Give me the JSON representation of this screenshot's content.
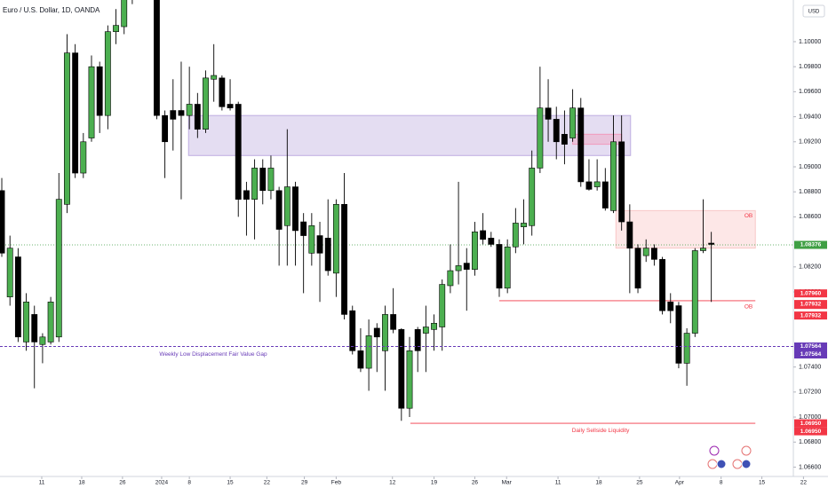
{
  "chart_data": {
    "type": "candlestick",
    "title": "Euro / U.S. Dollar, 1D, OANDA",
    "currency": "USD",
    "up_color": "#4caf50",
    "down_color": "#000000",
    "x": [
      0,
      1,
      2,
      3,
      4,
      5,
      6,
      7,
      8,
      9,
      10,
      11,
      12,
      13,
      14,
      15,
      16,
      17,
      18,
      19,
      20,
      21,
      22,
      23,
      24,
      25,
      26,
      27,
      28,
      29,
      30,
      31,
      32,
      33,
      34,
      35,
      36,
      37,
      38,
      39,
      40,
      41,
      42,
      43,
      44,
      45,
      46,
      47,
      48,
      49,
      50,
      51,
      52,
      53,
      54,
      55,
      56,
      57,
      58,
      59,
      60,
      61,
      62,
      63,
      64,
      65,
      66,
      67,
      68,
      69,
      70,
      71,
      72,
      73,
      74,
      75,
      76,
      77,
      78,
      79,
      80,
      81,
      82,
      83,
      84,
      85,
      86,
      87
    ],
    "open": [
      1.0881,
      1.0796,
      1.0828,
      1.076,
      1.0782,
      1.0758,
      1.076,
      1.0764,
      1.087,
      1.0991,
      1.0895,
      1.0923,
      1.098,
      1.0941,
      1.1008,
      1.1012,
      1.104,
      1.105,
      1.1045,
      1.106,
      1.0941,
      1.0945,
      1.0945,
      1.0941,
      1.095,
      1.093,
      1.097,
      1.0971,
      1.095,
      1.095,
      1.0881,
      1.0874,
      1.0899,
      1.0881,
      1.0881,
      1.0853,
      1.0884,
      1.0856,
      1.0831,
      1.0845,
      1.0843,
      1.0815,
      1.087,
      1.0785,
      1.0753,
      1.0739,
      1.0771,
      1.0753,
      1.0782,
      1.077,
      1.0707,
      1.077,
      1.0767,
      1.077,
      1.0772,
      1.0805,
      1.0817,
      1.0823,
      1.0818,
      1.0849,
      1.0843,
      1.0838,
      1.0803,
      1.0836,
      1.0852,
      1.0853,
      1.0899,
      1.0947,
      1.0938,
      1.0926,
      1.0923,
      1.0947,
      1.0888,
      1.0884,
      1.0888,
      1.0865,
      1.092,
      1.0856,
      1.0835,
      1.0829,
      1.0835,
      1.0826,
      1.0792,
      1.0789,
      1.0743,
      1.0767,
      1.0833,
      1.0839
    ],
    "high": [
      1.0891,
      1.0845,
      1.0835,
      1.0799,
      1.0789,
      1.0767,
      1.0796,
      1.0895,
      1.1006,
      1.0998,
      1.0927,
      1.0989,
      1.0984,
      1.1013,
      1.1026,
      1.104,
      1.106,
      1.1075,
      1.107,
      1.108,
      1.0945,
      1.097,
      1.0984,
      1.098,
      1.0959,
      1.0977,
      1.0998,
      1.0973,
      1.097,
      1.0952,
      1.0888,
      1.0906,
      1.0906,
      1.0909,
      1.0884,
      1.093,
      1.0888,
      1.0863,
      1.0863,
      1.0856,
      1.0874,
      1.0874,
      1.0895,
      1.0789,
      1.0771,
      1.0778,
      1.0775,
      1.0789,
      1.0803,
      1.0771,
      1.0764,
      1.0772,
      1.0789,
      1.0782,
      1.081,
      1.0838,
      1.0888,
      1.0835,
      1.0856,
      1.0863,
      1.0848,
      1.0842,
      1.0842,
      1.0867,
      1.0874,
      1.0913,
      1.098,
      1.097,
      1.0948,
      1.0945,
      1.0962,
      1.0955,
      1.0906,
      1.0906,
      1.0899,
      1.0941,
      1.0941,
      1.087,
      1.0838,
      1.0842,
      1.0838,
      1.0828,
      1.0799,
      1.0792,
      1.0771,
      1.0835,
      1.0874,
      1.0848
    ],
    "low": [
      1.0828,
      1.0789,
      1.076,
      1.0753,
      1.0723,
      1.0743,
      1.0758,
      1.076,
      1.0863,
      1.0891,
      1.0891,
      1.092,
      1.0927,
      1.093,
      1.0998,
      1.1006,
      1.103,
      1.104,
      1.1035,
      1.0938,
      1.0891,
      1.0913,
      1.0874,
      1.093,
      1.0923,
      1.0927,
      1.0952,
      1.0945,
      1.0945,
      1.086,
      1.0845,
      1.0842,
      1.087,
      1.0874,
      1.0821,
      1.0821,
      1.0821,
      1.0799,
      1.0821,
      1.0792,
      1.0813,
      1.0796,
      1.0778,
      1.075,
      1.0736,
      1.0721,
      1.0736,
      1.0721,
      1.0767,
      1.0697,
      1.07,
      1.0736,
      1.0736,
      1.0753,
      1.0753,
      1.0799,
      1.0806,
      1.0785,
      1.0813,
      1.0838,
      1.0836,
      1.0796,
      1.0799,
      1.0831,
      1.0838,
      1.0845,
      1.0895,
      1.092,
      1.0906,
      1.0902,
      1.092,
      1.0884,
      1.0881,
      1.0881,
      1.0865,
      1.0863,
      1.0849,
      1.0799,
      1.0799,
      1.0824,
      1.0821,
      1.0782,
      1.0775,
      1.0739,
      1.0725,
      1.0764,
      1.0831,
      1.0792
    ],
    "close": [
      1.0831,
      1.0835,
      1.0764,
      1.0792,
      1.076,
      1.0764,
      1.0792,
      1.0874,
      1.0991,
      1.0895,
      1.092,
      1.098,
      1.0941,
      1.1008,
      1.1013,
      1.1035,
      1.105,
      1.1045,
      1.106,
      1.0941,
      1.092,
      1.0938,
      1.0941,
      1.095,
      1.093,
      1.0971,
      1.0973,
      1.0948,
      1.0947,
      1.0874,
      1.0874,
      1.0899,
      1.0881,
      1.0899,
      1.085,
      1.0884,
      1.0849,
      1.0845,
      1.0853,
      1.0831,
      1.0817,
      1.087,
      1.0782,
      1.0753,
      1.0739,
      1.0765,
      1.0764,
      1.0782,
      1.077,
      1.0707,
      1.0753,
      1.0753,
      1.0772,
      1.0775,
      1.0806,
      1.0817,
      1.0821,
      1.0818,
      1.0848,
      1.0842,
      1.0838,
      1.0803,
      1.0836,
      1.0855,
      1.0855,
      1.0899,
      1.0947,
      1.0938,
      1.092,
      1.0918,
      1.0947,
      1.0888,
      1.0882,
      1.0888,
      1.0867,
      1.092,
      1.0856,
      1.0835,
      1.0803,
      1.0835,
      1.0826,
      1.0785,
      1.0785,
      1.0743,
      1.0767,
      1.0833,
      1.0835,
      1.0838
    ],
    "xlim": [
      -0.22,
      97.06
    ],
    "xticks": [
      {
        "value": 4.9,
        "label": "11"
      },
      {
        "value": 9.8,
        "label": "18"
      },
      {
        "value": 14.8,
        "label": "26"
      },
      {
        "value": 19.6,
        "label": "2024"
      },
      {
        "value": 23,
        "label": "8"
      },
      {
        "value": 28,
        "label": "15"
      },
      {
        "value": 32.5,
        "label": "22"
      },
      {
        "value": 37.1,
        "label": "29"
      },
      {
        "value": 41,
        "label": "Feb"
      },
      {
        "value": 47.9,
        "label": "12"
      },
      {
        "value": 53,
        "label": "19"
      },
      {
        "value": 58,
        "label": "26"
      },
      {
        "value": 61.9,
        "label": "Mar"
      },
      {
        "value": 68.2,
        "label": "11"
      },
      {
        "value": 73.2,
        "label": "18"
      },
      {
        "value": 78.2,
        "label": "25"
      },
      {
        "value": 83.1,
        "label": "Apr"
      },
      {
        "value": 88.2,
        "label": "8"
      },
      {
        "value": 93.2,
        "label": "15"
      },
      {
        "value": 98.3,
        "label": "22"
      }
    ],
    "ylim": [
      1.06504,
      1.10333
    ],
    "yticks": [
      {
        "value": 1.1,
        "label": "1.10000"
      },
      {
        "value": 1.098,
        "label": "1.09800"
      },
      {
        "value": 1.096,
        "label": "1.09600"
      },
      {
        "value": 1.094,
        "label": "1.09400"
      },
      {
        "value": 1.092,
        "label": "1.09200"
      },
      {
        "value": 1.09,
        "label": "1.09000"
      },
      {
        "value": 1.088,
        "label": "1.08800"
      },
      {
        "value": 1.086,
        "label": "1.08600"
      },
      {
        "value": 1.082,
        "label": "1.08200"
      },
      {
        "value": 1.08,
        "label": "1.08000"
      },
      {
        "value": 1.074,
        "label": "1.07400"
      },
      {
        "value": 1.072,
        "label": "1.07200"
      },
      {
        "value": 1.07,
        "label": "1.07000"
      },
      {
        "value": 1.068,
        "label": "1.06800"
      },
      {
        "value": 1.066,
        "label": "1.06600"
      }
    ],
    "zones": [
      {
        "x": [
          22.9,
          77.1
        ],
        "y": [
          1.0909,
          1.0941
        ],
        "color": "#b39ddb"
      },
      {
        "x": [
          70,
          76
        ],
        "y": [
          1.0918,
          1.0926
        ],
        "color": "#f48fb1"
      },
      {
        "x": [
          75.3,
          92.4
        ],
        "y": [
          1.0835,
          1.0865
        ],
        "color": "#f8bbbb",
        "label": "OB"
      }
    ],
    "levels": [
      {
        "value": 1.0793,
        "x": [
          61,
          92.4
        ],
        "color": "#f23645",
        "label": "OB"
      },
      {
        "value": 1.0695,
        "x": [
          50.1,
          92.4
        ],
        "color": "#f23645",
        "label": "Daily Sellside Liquidity"
      },
      {
        "value": 1.07564,
        "x": [
          -0.22,
          97.06
        ],
        "color": "#673ab7",
        "dashed": true,
        "label": "Weekly Low Displacement Fair Value Gap"
      }
    ],
    "price_labels": [
      {
        "value": 1.08376,
        "label": "1.08376",
        "color": "#3f9f44",
        "current": true
      },
      {
        "value": 1.0796,
        "label": "1.07960",
        "color": "#f23645"
      },
      {
        "value": 1.0796,
        "label": "1.07960",
        "color": "#f23645"
      },
      {
        "value": 1.07932,
        "label": "1.07932",
        "color": "#f23645"
      },
      {
        "value": 1.07932,
        "label": "1.07932",
        "color": "#f23645"
      },
      {
        "value": 1.07564,
        "label": "1.07564",
        "color": "#673ab7"
      },
      {
        "value": 1.07564,
        "label": "1.07564",
        "color": "#673ab7"
      },
      {
        "value": 1.0695,
        "label": "1.06950",
        "color": "#f23645"
      },
      {
        "value": 1.0695,
        "label": "1.06950",
        "color": "#f23645"
      }
    ]
  }
}
